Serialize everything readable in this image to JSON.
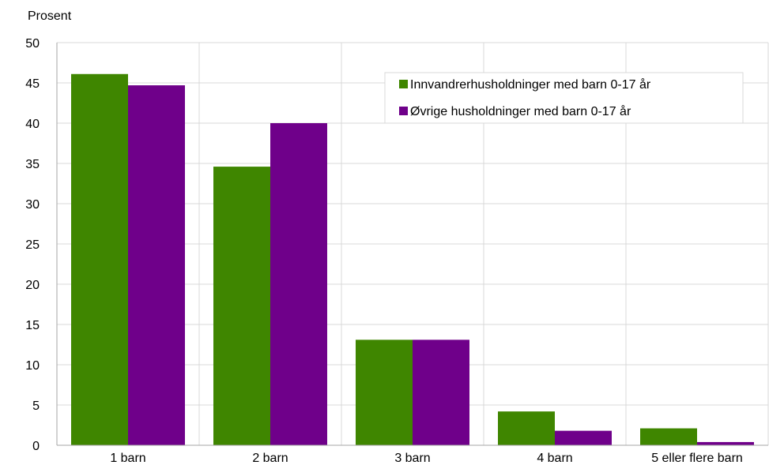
{
  "chart_data": {
    "type": "bar",
    "title": "",
    "ylabel": "Prosent",
    "xlabel": "",
    "ylim": [
      0,
      50
    ],
    "yticks": [
      0,
      5,
      10,
      15,
      20,
      25,
      30,
      35,
      40,
      45,
      50
    ],
    "grid": true,
    "legend_position": "top-right",
    "categories": [
      "1 barn",
      "2 barn",
      "3 barn",
      "4 barn",
      "5 eller flere barn"
    ],
    "series": [
      {
        "name": "Innvandrerhusholdninger med barn 0-17 år",
        "color": "#3f8600",
        "values": [
          46.1,
          34.6,
          13.1,
          4.2,
          2.1
        ]
      },
      {
        "name": "Øvrige husholdninger med barn 0-17 år",
        "color": "#6f008a",
        "values": [
          44.7,
          40.0,
          13.1,
          1.8,
          0.4
        ]
      }
    ]
  }
}
